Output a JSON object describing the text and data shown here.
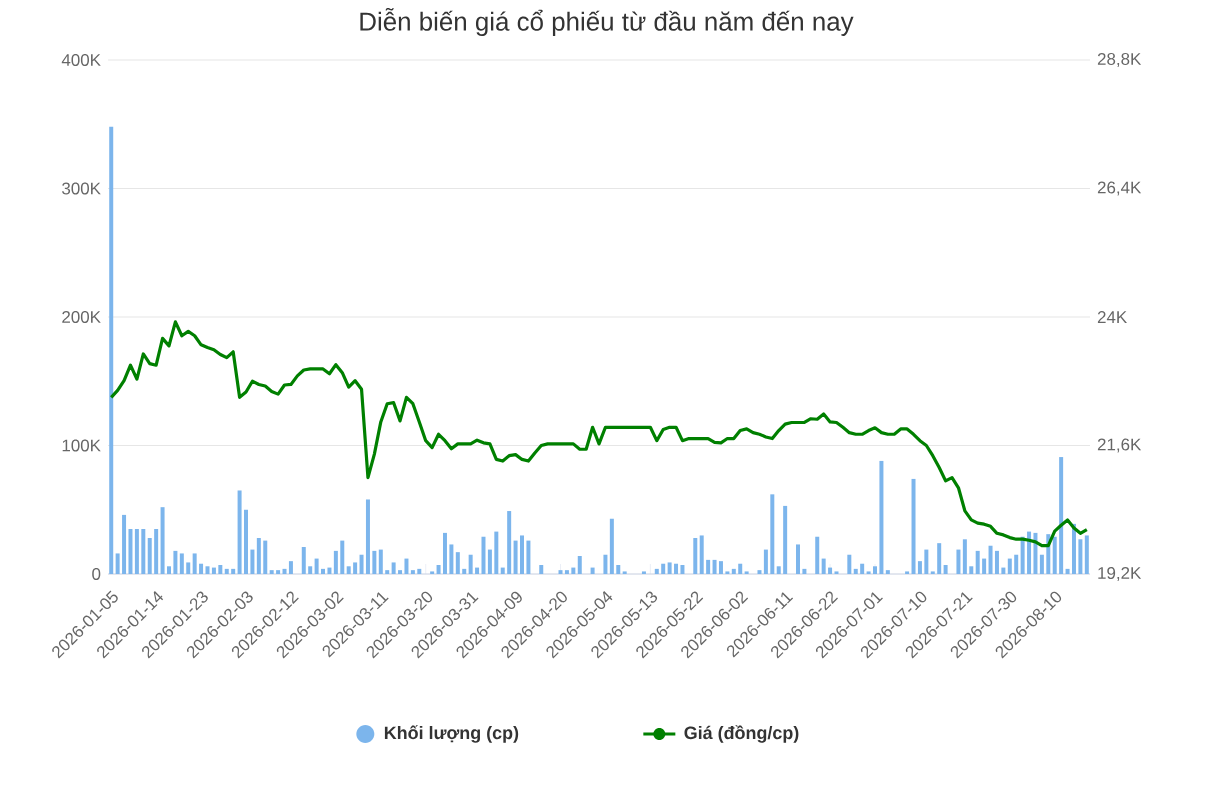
{
  "chart_data": {
    "type": "bar",
    "title": "Diễn biến giá cổ phiếu từ đầu năm đến nay",
    "categories": [
      "2026-01-05",
      null,
      null,
      null,
      null,
      null,
      null,
      "2026-01-14",
      null,
      null,
      null,
      null,
      null,
      null,
      "2026-01-23",
      null,
      null,
      null,
      null,
      null,
      null,
      "2026-02-03",
      null,
      null,
      null,
      null,
      null,
      null,
      "2026-02-12",
      null,
      null,
      null,
      null,
      null,
      null,
      "2026-03-02",
      null,
      null,
      null,
      null,
      null,
      null,
      "2026-03-11",
      null,
      null,
      null,
      null,
      null,
      null,
      "2026-03-20",
      null,
      null,
      null,
      null,
      null,
      null,
      "2026-03-31",
      null,
      null,
      null,
      null,
      null,
      null,
      "2026-04-09",
      null,
      null,
      null,
      null,
      null,
      null,
      "2026-04-20",
      null,
      null,
      null,
      null,
      null,
      null,
      "2026-05-04",
      null,
      null,
      null,
      null,
      null,
      null,
      "2026-05-13",
      null,
      null,
      null,
      null,
      null,
      null,
      "2026-05-22",
      null,
      null,
      null,
      null,
      null,
      null,
      "2026-06-02",
      null,
      null,
      null,
      null,
      null,
      null,
      "2026-06-11",
      null,
      null,
      null,
      null,
      null,
      null,
      "2026-06-22",
      null,
      null,
      null,
      null,
      null,
      null,
      "2026-07-01",
      null,
      null,
      null,
      null,
      null,
      null,
      "2026-07-10",
      null,
      null,
      null,
      null,
      null,
      null,
      "2026-07-21",
      null,
      null,
      null,
      null,
      null,
      null,
      "2026-07-30",
      null,
      null,
      null,
      null,
      null,
      null,
      "2026-08-10",
      null,
      null,
      null,
      null,
      null
    ],
    "series": [
      {
        "name": "Khối lượng (cp)",
        "type": "bar",
        "color": "#7cb5ec",
        "values": [
          348000,
          16000,
          46000,
          35000,
          35000,
          35000,
          28000,
          35000,
          52000,
          6000,
          18000,
          16000,
          9000,
          16000,
          8000,
          6000,
          5000,
          7000,
          4000,
          4000,
          65000,
          50000,
          19000,
          28000,
          26000,
          3000,
          3000,
          4000,
          10000,
          0,
          21000,
          6000,
          12000,
          4000,
          5000,
          18000,
          26000,
          6000,
          9000,
          15000,
          58000,
          18000,
          19000,
          3000,
          9000,
          3000,
          12000,
          3000,
          4000,
          0,
          2000,
          7000,
          32000,
          23000,
          17000,
          4000,
          15000,
          5000,
          29000,
          19000,
          33000,
          5000,
          49000,
          26000,
          30000,
          26000,
          0,
          7000,
          0,
          0,
          3000,
          3000,
          5000,
          14000,
          0,
          5000,
          0,
          15000,
          43000,
          7000,
          2000,
          0,
          0,
          2000,
          0,
          4000,
          8000,
          9000,
          8000,
          7000,
          0,
          28000,
          30000,
          11000,
          11000,
          10000,
          2000,
          4000,
          8000,
          2000,
          0,
          3000,
          19000,
          62000,
          6000,
          53000,
          0,
          23000,
          4000,
          0,
          29000,
          12000,
          5000,
          2000,
          0,
          15000,
          4000,
          8000,
          2000,
          6000,
          88000,
          3000,
          0,
          0,
          2000,
          74000,
          10000,
          19000,
          2000,
          24000,
          7000,
          0,
          19000,
          27000,
          6000,
          18000,
          12000,
          22000,
          18000,
          5000,
          12000,
          15000,
          29000,
          33000,
          32000,
          15000,
          31000,
          29000,
          91000,
          4000,
          39000,
          27000,
          30000
        ]
      },
      {
        "name": "Giá (đồng/cp)",
        "type": "line",
        "axis": "y2",
        "color": "#008000",
        "values": [
          22500,
          22630,
          22810,
          23100,
          22840,
          23310,
          23130,
          23100,
          23600,
          23460,
          23910,
          23650,
          23730,
          23650,
          23480,
          23430,
          23390,
          23300,
          23240,
          23350,
          22500,
          22600,
          22800,
          22740,
          22710,
          22610,
          22560,
          22730,
          22740,
          22900,
          23010,
          23030,
          23030,
          23030,
          22940,
          23110,
          22960,
          22690,
          22810,
          22650,
          21000,
          21440,
          22040,
          22380,
          22400,
          22060,
          22500,
          22380,
          22040,
          21690,
          21560,
          21810,
          21690,
          21540,
          21630,
          21630,
          21630,
          21700,
          21650,
          21630,
          21340,
          21310,
          21410,
          21430,
          21340,
          21310,
          21460,
          21600,
          21630,
          21630,
          21630,
          21630,
          21630,
          21530,
          21530,
          21940,
          21630,
          21940,
          21940,
          21940,
          21940,
          21940,
          21940,
          21940,
          21940,
          21690,
          21900,
          21940,
          21940,
          21690,
          21730,
          21730,
          21730,
          21730,
          21660,
          21650,
          21730,
          21730,
          21880,
          21910,
          21840,
          21810,
          21760,
          21730,
          21880,
          22000,
          22030,
          22030,
          22030,
          22100,
          22090,
          22190,
          22040,
          22030,
          21940,
          21840,
          21810,
          21810,
          21880,
          21930,
          21840,
          21810,
          21810,
          21910,
          21910,
          21810,
          21690,
          21600,
          21410,
          21190,
          20940,
          21000,
          20810,
          20380,
          20210,
          20150,
          20130,
          20090,
          19960,
          19930,
          19880,
          19850,
          19850,
          19830,
          19800,
          19730,
          19730,
          20000,
          20110,
          20210,
          20060,
          19960,
          20030
        ]
      }
    ],
    "ylim": [
      0,
      400000
    ],
    "yticks": [
      {
        "value": 0,
        "label": "0"
      },
      {
        "value": 100000,
        "label": "100K"
      },
      {
        "value": 200000,
        "label": "200K"
      },
      {
        "value": 300000,
        "label": "300K"
      },
      {
        "value": 400000,
        "label": "400K"
      }
    ],
    "y2lim": [
      19200,
      28800
    ],
    "y2ticks": [
      {
        "value": 19200,
        "label": "19,2K"
      },
      {
        "value": 21600,
        "label": "21,6K"
      },
      {
        "value": 24000,
        "label": "24K"
      },
      {
        "value": 26400,
        "label": "26,4K"
      },
      {
        "value": 28800,
        "label": "28,8K"
      }
    ],
    "grid": "y",
    "legend": "bottom"
  }
}
